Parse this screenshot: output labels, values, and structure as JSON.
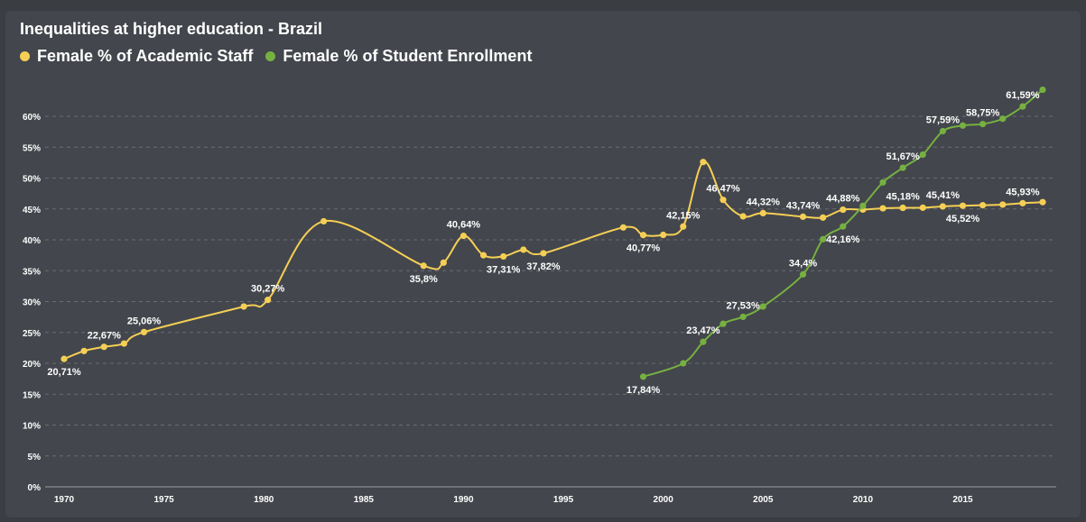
{
  "colors": {
    "background": "#3a3d42",
    "panel": "#43464c",
    "academic_staff": "#f5cf55",
    "student_enrollment": "#76b041",
    "grid": "#6a6d72",
    "text": "#ffffff"
  },
  "chart_data": {
    "type": "line",
    "title": "Inequalities at higher education - Brazil",
    "legend_placement": "top-left",
    "grid": true,
    "xlim": [
      1970,
      2019
    ],
    "ylim": [
      0,
      60
    ],
    "x_ticks": [
      1970,
      1975,
      1980,
      1985,
      1990,
      1995,
      2000,
      2005,
      2010,
      2015
    ],
    "y_ticks": [
      0,
      5,
      10,
      15,
      20,
      25,
      30,
      35,
      40,
      45,
      50,
      55,
      60
    ],
    "y_tick_labels": [
      "0%",
      "5%",
      "10%",
      "15%",
      "20%",
      "25%",
      "30%",
      "35%",
      "40%",
      "45%",
      "50%",
      "55%",
      "60%"
    ],
    "series": [
      {
        "name": "Female % of Academic Staff",
        "color": "#f5cf55",
        "x": [
          1970,
          1971,
          1972,
          1973,
          1974,
          1979,
          1980.2,
          1983,
          1988,
          1989,
          1990,
          1991,
          1992,
          1993,
          1994,
          1998,
          1999,
          2000,
          2001,
          2002,
          2003,
          2004,
          2005,
          2007,
          2008,
          2009,
          2010,
          2011,
          2012,
          2013,
          2014,
          2015,
          2016,
          2017,
          2018,
          2019
        ],
        "values": [
          20.71,
          22.0,
          22.67,
          23.2,
          25.06,
          29.2,
          30.27,
          43.0,
          35.8,
          36.3,
          40.64,
          37.5,
          37.31,
          38.4,
          37.82,
          42.0,
          40.77,
          40.8,
          42.15,
          52.6,
          46.47,
          43.8,
          44.32,
          43.74,
          43.6,
          44.88,
          44.9,
          45.1,
          45.18,
          45.2,
          45.41,
          45.52,
          45.6,
          45.7,
          45.93,
          46.1
        ]
      },
      {
        "name": "Female % of Student Enrollment",
        "color": "#76b041",
        "x": [
          1999,
          2001,
          2002,
          2003,
          2004,
          2005,
          2007,
          2008,
          2009,
          2010,
          2011,
          2012,
          2013,
          2014,
          2015,
          2016,
          2017,
          2018,
          2019
        ],
        "values": [
          17.84,
          20.0,
          23.47,
          26.4,
          27.53,
          29.2,
          34.4,
          40.1,
          42.16,
          45.5,
          49.3,
          51.67,
          53.8,
          57.59,
          58.5,
          58.75,
          59.6,
          61.59,
          64.3
        ]
      }
    ],
    "data_labels": [
      {
        "series": 0,
        "index": 0,
        "text": "20,71%",
        "pos": "below"
      },
      {
        "series": 0,
        "index": 2,
        "text": "22,67%",
        "pos": "above"
      },
      {
        "series": 0,
        "index": 4,
        "text": "25,06%",
        "pos": "above"
      },
      {
        "series": 0,
        "index": 6,
        "text": "30,27%",
        "pos": "above"
      },
      {
        "series": 0,
        "index": 8,
        "text": "35,8%",
        "pos": "below"
      },
      {
        "series": 0,
        "index": 10,
        "text": "40,64%",
        "pos": "above"
      },
      {
        "series": 0,
        "index": 12,
        "text": "37,31%",
        "pos": "below"
      },
      {
        "series": 0,
        "index": 14,
        "text": "37,82%",
        "pos": "below"
      },
      {
        "series": 0,
        "index": 16,
        "text": "40,77%",
        "pos": "below"
      },
      {
        "series": 0,
        "index": 18,
        "text": "42,15%",
        "pos": "above"
      },
      {
        "series": 0,
        "index": 20,
        "text": "46,47%",
        "pos": "above"
      },
      {
        "series": 0,
        "index": 22,
        "text": "44,32%",
        "pos": "above"
      },
      {
        "series": 0,
        "index": 23,
        "text": "43,74%",
        "pos": "above"
      },
      {
        "series": 0,
        "index": 25,
        "text": "44,88%",
        "pos": "above"
      },
      {
        "series": 0,
        "index": 28,
        "text": "45,18%",
        "pos": "above"
      },
      {
        "series": 0,
        "index": 30,
        "text": "45,41%",
        "pos": "above"
      },
      {
        "series": 0,
        "index": 31,
        "text": "45,52%",
        "pos": "below"
      },
      {
        "series": 0,
        "index": 34,
        "text": "45,93%",
        "pos": "above"
      },
      {
        "series": 1,
        "index": 0,
        "text": "17,84%",
        "pos": "below"
      },
      {
        "series": 1,
        "index": 2,
        "text": "23,47%",
        "pos": "above"
      },
      {
        "series": 1,
        "index": 4,
        "text": "27,53%",
        "pos": "above"
      },
      {
        "series": 1,
        "index": 6,
        "text": "34,4%",
        "pos": "above"
      },
      {
        "series": 1,
        "index": 8,
        "text": "42,16%",
        "pos": "below"
      },
      {
        "series": 1,
        "index": 11,
        "text": "51,67%",
        "pos": "above"
      },
      {
        "series": 1,
        "index": 13,
        "text": "57,59%",
        "pos": "above"
      },
      {
        "series": 1,
        "index": 15,
        "text": "58,75%",
        "pos": "above"
      },
      {
        "series": 1,
        "index": 17,
        "text": "61,59%",
        "pos": "above"
      }
    ]
  }
}
